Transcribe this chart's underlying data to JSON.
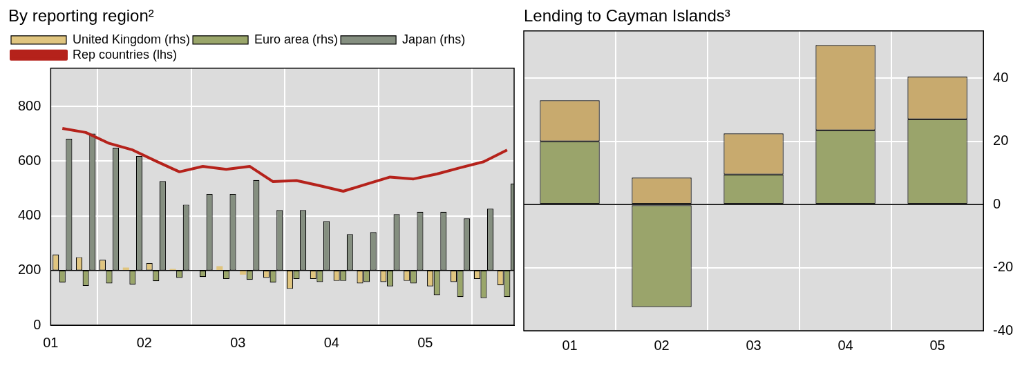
{
  "chart_data": [
    {
      "type": "bar",
      "title": "By reporting region²",
      "xlim": [
        2001,
        2005.95
      ],
      "xticks": [
        {
          "value": 2001,
          "label": "01"
        },
        {
          "value": 2002,
          "label": "02"
        },
        {
          "value": 2003,
          "label": "03"
        },
        {
          "value": 2004,
          "label": "04"
        },
        {
          "value": 2005,
          "label": "05"
        }
      ],
      "ylim": [
        0,
        940
      ],
      "yticks": [
        0,
        200,
        400,
        600,
        800
      ],
      "grid": true,
      "legend": "top",
      "x": [
        2001.125,
        2001.375,
        2001.625,
        2001.875,
        2002.125,
        2002.375,
        2002.625,
        2002.875,
        2003.125,
        2003.375,
        2003.625,
        2003.875,
        2004.125,
        2004.375,
        2004.625,
        2004.875,
        2005.125,
        2005.375,
        2005.625,
        2005.875
      ],
      "series": [
        {
          "name": "United Kingdom (rhs)",
          "color": "#e0c57f",
          "base": [
            200,
            200,
            200,
            200,
            200,
            200,
            null,
            200,
            200,
            200,
            200,
            200,
            200,
            200,
            200,
            200,
            200,
            200,
            200,
            200
          ],
          "values": [
            59,
            49,
            39,
            11,
            27,
            6,
            null,
            16,
            -15,
            -27,
            -67,
            -31,
            -38,
            -47,
            -42,
            -38,
            -58,
            -42,
            -31,
            -54
          ]
        },
        {
          "name": "Euro area (rhs)",
          "color": "#9aa66a",
          "base": [
            200,
            200,
            200,
            200,
            200,
            200,
            200,
            200,
            200,
            200,
            200,
            200,
            200,
            200,
            200,
            200,
            200,
            200,
            200,
            200
          ],
          "values": [
            -44,
            -56,
            -47,
            -51,
            -39,
            -27,
            -24,
            -31,
            -34,
            -44,
            -31,
            -42,
            -38,
            -42,
            -58,
            -47,
            -90,
            -97,
            -101,
            -97
          ]
        },
        {
          "name": "Japan (rhs)",
          "color": "#858f80",
          "base": [
            200,
            200,
            200,
            200,
            200,
            200,
            200,
            200,
            200,
            200,
            200,
            200,
            200,
            200,
            200,
            200,
            200,
            200,
            200,
            200
          ],
          "values": [
            482,
            501,
            449,
            419,
            327,
            241,
            280,
            280,
            331,
            221,
            221,
            181,
            133,
            140,
            206,
            215,
            215,
            191,
            226,
            318
          ]
        },
        {
          "name": "Rep countries (lhs)",
          "type": "line",
          "color": "#b5221b",
          "values": [
            720,
            705,
            665,
            641,
            600,
            561,
            581,
            570,
            581,
            525,
            529,
            510,
            490,
            516,
            542,
            535,
            553,
            576,
            598,
            641
          ]
        }
      ],
      "ref_lines": [
        {
          "axis": "y",
          "value": 200,
          "color": "#000000"
        }
      ]
    },
    {
      "type": "bar",
      "title": "Lending to Cayman Islands³",
      "categories": [
        "01",
        "02",
        "03",
        "04",
        "05"
      ],
      "stacked": true,
      "y2lim": [
        -40,
        55
      ],
      "y2ticks": [
        -40,
        -20,
        0,
        20,
        40
      ],
      "grid": true,
      "series": [
        {
          "color": "#9aa46b",
          "axis": "y2",
          "values": [
            20,
            -32.5,
            9.5,
            23.5,
            27
          ]
        },
        {
          "color": "#c8aa6e",
          "axis": "y2",
          "values": [
            13,
            8.5,
            13,
            27,
            13.5
          ]
        }
      ],
      "ref_lines": [
        {
          "axis": "y2",
          "value": 0,
          "color": "#000000"
        }
      ]
    }
  ]
}
